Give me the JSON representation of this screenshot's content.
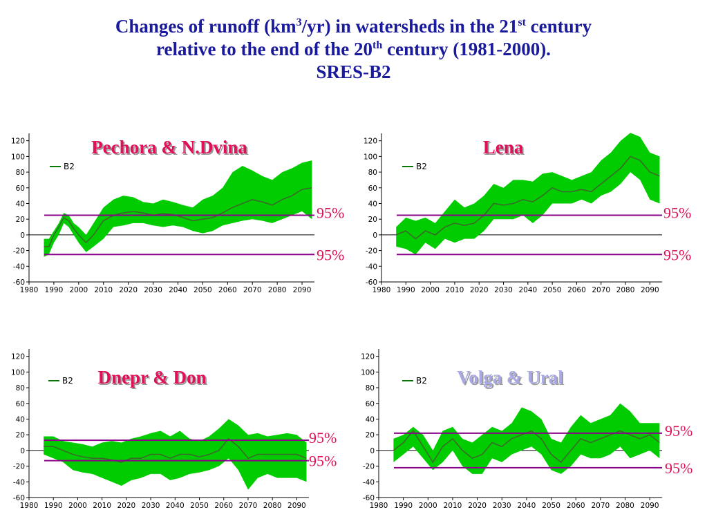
{
  "header": {
    "line1_a": "Changes of runoff (km",
    "line1_sup1": "3",
    "line1_b": "/yr) in watersheds in the 21",
    "line1_sup2": "st",
    "line1_c": " century",
    "line2_a": "relative to the end of the 20",
    "line2_sup": "th",
    "line2_b": " century (1981-2000).",
    "line3": "SRES-B2"
  },
  "colors": {
    "title": "#1a1a9c",
    "band": "#00cc00",
    "mean_line": "#3b6b2a",
    "threshold": "#8b008b",
    "pct_label": "#e0105a"
  },
  "chart_data": [
    {
      "type": "area",
      "title": "Pechora & N.Dvina",
      "title_color": "#e0105a",
      "legend": "B2",
      "xlim": [
        1980,
        2095
      ],
      "ylim": [
        -60,
        125
      ],
      "yticks": [
        120,
        100,
        80,
        60,
        40,
        20,
        0,
        -20,
        -40,
        -60
      ],
      "xticks": [
        1980,
        1990,
        2000,
        2010,
        2020,
        2030,
        2040,
        2050,
        2060,
        2070,
        2080,
        2090
      ],
      "thresholds": [
        {
          "value": 25,
          "label": "95%"
        },
        {
          "value": -25,
          "label": "95%"
        }
      ],
      "series": [
        {
          "name": "B2",
          "x": [
            1986,
            1988,
            1990,
            1992,
            1994,
            1996,
            1998,
            2000,
            2003,
            2006,
            2010,
            2014,
            2018,
            2022,
            2026,
            2030,
            2034,
            2038,
            2042,
            2046,
            2050,
            2054,
            2058,
            2062,
            2066,
            2070,
            2074,
            2078,
            2082,
            2086,
            2090,
            2094
          ],
          "mean": [
            -15,
            -15,
            0,
            10,
            22,
            18,
            8,
            0,
            -10,
            0,
            18,
            25,
            28,
            30,
            28,
            25,
            27,
            26,
            22,
            18,
            20,
            22,
            28,
            35,
            40,
            45,
            42,
            38,
            45,
            50,
            58,
            60
          ],
          "upper": [
            -5,
            -5,
            5,
            15,
            28,
            25,
            15,
            10,
            0,
            15,
            35,
            45,
            50,
            48,
            42,
            40,
            45,
            42,
            38,
            35,
            45,
            50,
            60,
            80,
            88,
            82,
            75,
            70,
            80,
            85,
            92,
            95
          ],
          "lower": [
            -28,
            -25,
            -10,
            0,
            15,
            10,
            0,
            -10,
            -22,
            -15,
            -5,
            10,
            12,
            15,
            15,
            12,
            10,
            12,
            10,
            5,
            2,
            5,
            12,
            15,
            18,
            20,
            18,
            15,
            20,
            25,
            30,
            20
          ]
        }
      ]
    },
    {
      "type": "area",
      "title": "Lena",
      "title_color": "#e0105a",
      "legend": "B2",
      "xlim": [
        1980,
        2095
      ],
      "ylim": [
        -60,
        125
      ],
      "yticks": [
        120,
        100,
        80,
        60,
        40,
        20,
        0,
        -20,
        -40,
        -60
      ],
      "xticks": [
        1980,
        1990,
        2000,
        2010,
        2020,
        2030,
        2040,
        2050,
        2060,
        2070,
        2080,
        2090
      ],
      "thresholds": [
        {
          "value": 25,
          "label": "95%"
        },
        {
          "value": -25,
          "label": "95%"
        }
      ],
      "series": [
        {
          "name": "B2",
          "x": [
            1986,
            1990,
            1994,
            1998,
            2002,
            2006,
            2010,
            2014,
            2018,
            2022,
            2026,
            2030,
            2034,
            2038,
            2042,
            2046,
            2050,
            2054,
            2058,
            2062,
            2066,
            2070,
            2074,
            2078,
            2082,
            2086,
            2090,
            2094
          ],
          "mean": [
            0,
            5,
            -5,
            5,
            0,
            10,
            15,
            12,
            15,
            25,
            40,
            38,
            40,
            45,
            42,
            50,
            60,
            55,
            55,
            58,
            55,
            65,
            75,
            85,
            100,
            95,
            80,
            75
          ],
          "upper": [
            10,
            22,
            18,
            22,
            15,
            30,
            45,
            35,
            40,
            50,
            65,
            60,
            70,
            70,
            68,
            78,
            80,
            75,
            70,
            75,
            80,
            95,
            105,
            120,
            130,
            125,
            105,
            100
          ],
          "lower": [
            -15,
            -18,
            -25,
            -10,
            -18,
            -5,
            -10,
            -5,
            -5,
            5,
            20,
            20,
            20,
            25,
            15,
            25,
            40,
            40,
            40,
            45,
            40,
            50,
            55,
            65,
            80,
            70,
            45,
            40
          ]
        }
      ]
    },
    {
      "type": "area",
      "title": "Dnepr & Don",
      "title_color": "#e0105a",
      "legend": "B2",
      "xlim": [
        1980,
        2095
      ],
      "ylim": [
        -60,
        125
      ],
      "yticks": [
        120,
        100,
        80,
        60,
        40,
        20,
        0,
        -20,
        -40,
        -60
      ],
      "xticks": [
        1980,
        1990,
        2000,
        2010,
        2020,
        2030,
        2040,
        2050,
        2060,
        2070,
        2080,
        2090
      ],
      "thresholds": [
        {
          "value": 13,
          "label": "95%"
        },
        {
          "value": -13,
          "label": "95%"
        }
      ],
      "series": [
        {
          "name": "B2",
          "x": [
            1986,
            1990,
            1994,
            1998,
            2002,
            2006,
            2010,
            2014,
            2018,
            2022,
            2026,
            2030,
            2034,
            2038,
            2042,
            2046,
            2050,
            2054,
            2058,
            2062,
            2066,
            2070,
            2074,
            2078,
            2082,
            2086,
            2090,
            2094
          ],
          "mean": [
            5,
            5,
            0,
            -5,
            -8,
            -10,
            -10,
            -12,
            -15,
            -10,
            -10,
            -5,
            -5,
            -10,
            -5,
            -5,
            -8,
            -5,
            0,
            15,
            5,
            -10,
            -5,
            -5,
            -5,
            -5,
            -5,
            -10
          ],
          "upper": [
            18,
            18,
            12,
            10,
            8,
            5,
            10,
            12,
            10,
            15,
            18,
            22,
            25,
            18,
            25,
            15,
            12,
            18,
            28,
            40,
            32,
            20,
            22,
            18,
            20,
            22,
            20,
            10
          ],
          "lower": [
            -5,
            -10,
            -15,
            -25,
            -28,
            -30,
            -35,
            -40,
            -45,
            -38,
            -35,
            -30,
            -30,
            -38,
            -35,
            -30,
            -28,
            -25,
            -20,
            -10,
            -25,
            -50,
            -35,
            -30,
            -35,
            -35,
            -35,
            -40
          ]
        }
      ]
    },
    {
      "type": "area",
      "title": "Volga & Ural",
      "title_color": "#a9a9e6",
      "legend": "B2",
      "xlim": [
        1980,
        2095
      ],
      "ylim": [
        -60,
        125
      ],
      "yticks": [
        120,
        100,
        80,
        60,
        40,
        20,
        0,
        -20,
        -40,
        -60
      ],
      "xticks": [
        1980,
        1990,
        2000,
        2010,
        2020,
        2030,
        2040,
        2050,
        2060,
        2070,
        2080,
        2090
      ],
      "thresholds": [
        {
          "value": 22,
          "label": "95%"
        },
        {
          "value": -22,
          "label": "95%"
        }
      ],
      "series": [
        {
          "name": "B2",
          "x": [
            1986,
            1990,
            1994,
            1998,
            2002,
            2006,
            2010,
            2014,
            2018,
            2022,
            2026,
            2030,
            2034,
            2038,
            2042,
            2046,
            2050,
            2054,
            2058,
            2062,
            2066,
            2070,
            2074,
            2078,
            2082,
            2086,
            2090,
            2094
          ],
          "mean": [
            0,
            10,
            25,
            5,
            -15,
            5,
            15,
            0,
            -10,
            -5,
            10,
            5,
            15,
            20,
            25,
            15,
            -5,
            -15,
            0,
            15,
            10,
            15,
            20,
            25,
            20,
            15,
            20,
            10
          ],
          "upper": [
            15,
            20,
            30,
            20,
            0,
            25,
            30,
            15,
            10,
            20,
            30,
            25,
            35,
            55,
            50,
            40,
            15,
            10,
            30,
            45,
            35,
            40,
            45,
            60,
            50,
            35,
            35,
            35
          ],
          "lower": [
            -15,
            -5,
            5,
            -10,
            -25,
            -15,
            0,
            -20,
            -30,
            -30,
            -10,
            -15,
            -5,
            0,
            5,
            -5,
            -25,
            -30,
            -20,
            -5,
            -10,
            -10,
            -5,
            5,
            -10,
            -5,
            0,
            -10
          ]
        }
      ]
    }
  ]
}
